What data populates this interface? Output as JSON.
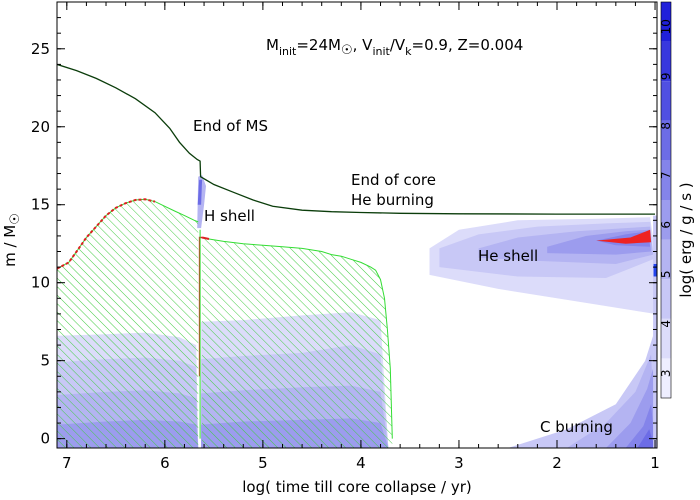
{
  "chart_data": {
    "type": "kippenhahn",
    "title_parts": {
      "m": "M",
      "init": "init",
      "eq_mass": "=24M",
      "sun": "☉",
      "comma_v": ",  V",
      "slash_v": "/V",
      "k": "k",
      "v_val": "=0.9,  Z=0.004"
    },
    "xlabel": "log( time till core collapse / yr)",
    "ylabel_main": "m / M",
    "ylabel_sun": "☉",
    "xlim": [
      7.1,
      0.98
    ],
    "ylim": [
      -0.6,
      28
    ],
    "xticks": [
      "7",
      "6",
      "5",
      "4",
      "3",
      "2",
      "1"
    ],
    "yticks": [
      "0",
      "5",
      "10",
      "15",
      "20",
      "25"
    ],
    "colorbar": {
      "label": "log( erg / g / s )",
      "range": [
        2.5,
        10.5
      ],
      "ticks": [
        "3",
        "4",
        "5",
        "6",
        "7",
        "8",
        "9",
        "10"
      ],
      "colors": [
        "#eeeeff",
        "#dcdcfa",
        "#c8c8f6",
        "#b4b4f2",
        "#9c9cee",
        "#8484ea",
        "#6c6ce6",
        "#5050e2",
        "#3838de",
        "#2020da"
      ]
    },
    "annotations": {
      "end_ms": "End of MS",
      "end_core_he_1": "End of core",
      "end_core_he_2": "He burning",
      "h_shell": "H shell",
      "he_shell": "He shell",
      "c_burning": "C burning"
    },
    "total_mass": {
      "x": [
        7.1,
        6.9,
        6.7,
        6.5,
        6.3,
        6.1,
        5.95,
        5.85,
        5.75,
        5.67,
        5.64,
        5.635,
        5.5,
        5.3,
        5.1,
        4.9,
        4.6,
        4.3,
        4.0,
        3.6,
        3.0,
        2.0,
        1.0
      ],
      "y": [
        24.0,
        23.6,
        23.1,
        22.5,
        21.8,
        20.9,
        19.9,
        19.0,
        18.3,
        17.9,
        17.8,
        16.8,
        16.3,
        15.8,
        15.3,
        14.9,
        14.65,
        14.55,
        14.5,
        14.45,
        14.42,
        14.4,
        14.4
      ]
    },
    "core_ms": {
      "x": [
        7.1,
        6.98,
        6.9,
        6.8,
        6.7,
        6.6,
        6.5,
        6.4,
        6.3,
        6.2,
        6.1,
        6.0,
        5.9,
        5.8,
        5.7,
        5.66
      ],
      "y": [
        10.9,
        11.3,
        12.0,
        12.9,
        13.6,
        14.3,
        14.8,
        15.1,
        15.3,
        15.35,
        15.2,
        14.9,
        14.6,
        14.3,
        14.0,
        13.9
      ]
    },
    "core_he": {
      "x": [
        5.62,
        5.55,
        5.4,
        5.2,
        5.0,
        4.8,
        4.6,
        4.4,
        4.3,
        4.2,
        4.1,
        4.0,
        3.9,
        3.85,
        3.8,
        3.76,
        3.73,
        3.7,
        3.68
      ],
      "y": [
        12.9,
        12.8,
        12.65,
        12.5,
        12.4,
        12.3,
        12.2,
        12.0,
        11.8,
        11.7,
        11.5,
        11.3,
        11.0,
        10.8,
        10.2,
        9.0,
        7.0,
        4.5,
        0.0
      ]
    }
  }
}
